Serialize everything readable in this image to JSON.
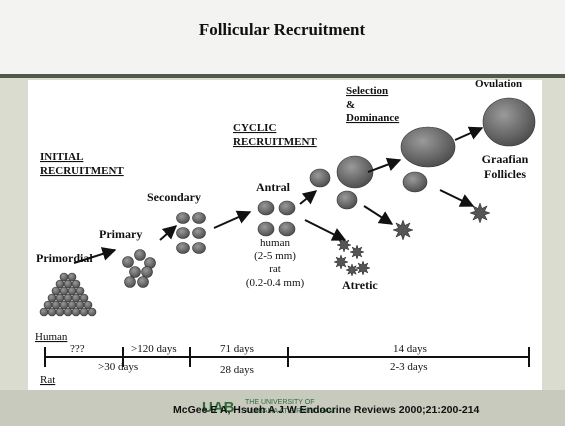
{
  "header": {
    "title": "Follicular Recruitment"
  },
  "diagram": {
    "phases": {
      "initial": [
        "INITIAL",
        "RECRUITMENT"
      ],
      "cyclic": [
        "CYCLIC",
        "RECRUITMENT"
      ],
      "selection": [
        "Selection",
        "&",
        "Dominance"
      ]
    },
    "stages": {
      "primordial": "Primordial",
      "primary": "Primary",
      "secondary": "Secondary",
      "antral": "Antral",
      "ovulation": "Ovulation",
      "graafian": [
        "Graafian",
        "Follicles"
      ],
      "atretic": "Atretic"
    },
    "antral_size": [
      "human",
      "(2-5 mm)",
      "rat",
      "(0.2-0.4 mm)"
    ]
  },
  "timeline": {
    "human_label": "Human",
    "rat_label": "Rat",
    "human": [
      "???",
      ">120 days",
      "71 days",
      "14 days"
    ],
    "rat": [
      ">30 days",
      "28 days",
      "2-3 days"
    ]
  },
  "footer": {
    "citation": "McGee E A, Hsueh A J W Endocrine Reviews 2000;21:200-214",
    "logo": "UAB",
    "university": [
      "THE UNIVERSITY OF",
      "ALABAMA AT BIRMINGHAM"
    ]
  }
}
